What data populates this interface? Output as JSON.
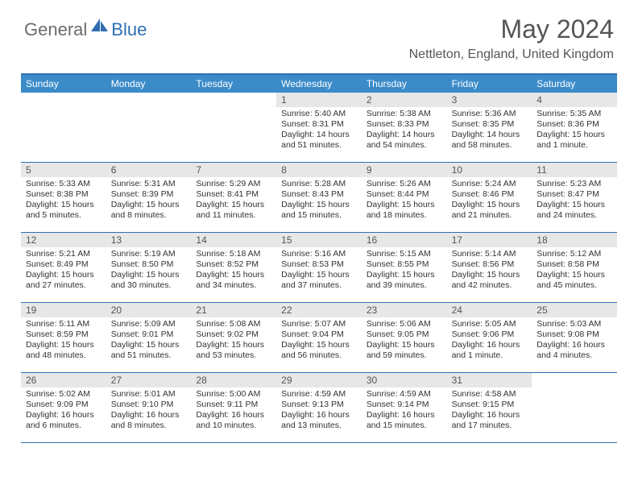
{
  "brand": {
    "text1": "General",
    "text2": "Blue"
  },
  "title": "May 2024",
  "location": "Nettleton, England, United Kingdom",
  "styling": {
    "accent_color": "#3b8bc9",
    "border_color": "#2f6fb3",
    "daynum_bg": "#e7e7e7",
    "text_color": "#555555",
    "body_text": "#333333",
    "logo_gray": "#6b6b6b",
    "logo_blue": "#2f6fb3",
    "title_fontsize": 32,
    "location_fontsize": 16,
    "dayheader_fontsize": 12,
    "daynum_fontsize": 12,
    "body_fontsize": 10.5
  },
  "day_names": [
    "Sunday",
    "Monday",
    "Tuesday",
    "Wednesday",
    "Thursday",
    "Friday",
    "Saturday"
  ],
  "weeks": [
    [
      null,
      null,
      null,
      {
        "n": "1",
        "sunrise": "5:40 AM",
        "sunset": "8:31 PM",
        "daylight": "14 hours and 51 minutes."
      },
      {
        "n": "2",
        "sunrise": "5:38 AM",
        "sunset": "8:33 PM",
        "daylight": "14 hours and 54 minutes."
      },
      {
        "n": "3",
        "sunrise": "5:36 AM",
        "sunset": "8:35 PM",
        "daylight": "14 hours and 58 minutes."
      },
      {
        "n": "4",
        "sunrise": "5:35 AM",
        "sunset": "8:36 PM",
        "daylight": "15 hours and 1 minute."
      }
    ],
    [
      {
        "n": "5",
        "sunrise": "5:33 AM",
        "sunset": "8:38 PM",
        "daylight": "15 hours and 5 minutes."
      },
      {
        "n": "6",
        "sunrise": "5:31 AM",
        "sunset": "8:39 PM",
        "daylight": "15 hours and 8 minutes."
      },
      {
        "n": "7",
        "sunrise": "5:29 AM",
        "sunset": "8:41 PM",
        "daylight": "15 hours and 11 minutes."
      },
      {
        "n": "8",
        "sunrise": "5:28 AM",
        "sunset": "8:43 PM",
        "daylight": "15 hours and 15 minutes."
      },
      {
        "n": "9",
        "sunrise": "5:26 AM",
        "sunset": "8:44 PM",
        "daylight": "15 hours and 18 minutes."
      },
      {
        "n": "10",
        "sunrise": "5:24 AM",
        "sunset": "8:46 PM",
        "daylight": "15 hours and 21 minutes."
      },
      {
        "n": "11",
        "sunrise": "5:23 AM",
        "sunset": "8:47 PM",
        "daylight": "15 hours and 24 minutes."
      }
    ],
    [
      {
        "n": "12",
        "sunrise": "5:21 AM",
        "sunset": "8:49 PM",
        "daylight": "15 hours and 27 minutes."
      },
      {
        "n": "13",
        "sunrise": "5:19 AM",
        "sunset": "8:50 PM",
        "daylight": "15 hours and 30 minutes."
      },
      {
        "n": "14",
        "sunrise": "5:18 AM",
        "sunset": "8:52 PM",
        "daylight": "15 hours and 34 minutes."
      },
      {
        "n": "15",
        "sunrise": "5:16 AM",
        "sunset": "8:53 PM",
        "daylight": "15 hours and 37 minutes."
      },
      {
        "n": "16",
        "sunrise": "5:15 AM",
        "sunset": "8:55 PM",
        "daylight": "15 hours and 39 minutes."
      },
      {
        "n": "17",
        "sunrise": "5:14 AM",
        "sunset": "8:56 PM",
        "daylight": "15 hours and 42 minutes."
      },
      {
        "n": "18",
        "sunrise": "5:12 AM",
        "sunset": "8:58 PM",
        "daylight": "15 hours and 45 minutes."
      }
    ],
    [
      {
        "n": "19",
        "sunrise": "5:11 AM",
        "sunset": "8:59 PM",
        "daylight": "15 hours and 48 minutes."
      },
      {
        "n": "20",
        "sunrise": "5:09 AM",
        "sunset": "9:01 PM",
        "daylight": "15 hours and 51 minutes."
      },
      {
        "n": "21",
        "sunrise": "5:08 AM",
        "sunset": "9:02 PM",
        "daylight": "15 hours and 53 minutes."
      },
      {
        "n": "22",
        "sunrise": "5:07 AM",
        "sunset": "9:04 PM",
        "daylight": "15 hours and 56 minutes."
      },
      {
        "n": "23",
        "sunrise": "5:06 AM",
        "sunset": "9:05 PM",
        "daylight": "15 hours and 59 minutes."
      },
      {
        "n": "24",
        "sunrise": "5:05 AM",
        "sunset": "9:06 PM",
        "daylight": "16 hours and 1 minute."
      },
      {
        "n": "25",
        "sunrise": "5:03 AM",
        "sunset": "9:08 PM",
        "daylight": "16 hours and 4 minutes."
      }
    ],
    [
      {
        "n": "26",
        "sunrise": "5:02 AM",
        "sunset": "9:09 PM",
        "daylight": "16 hours and 6 minutes."
      },
      {
        "n": "27",
        "sunrise": "5:01 AM",
        "sunset": "9:10 PM",
        "daylight": "16 hours and 8 minutes."
      },
      {
        "n": "28",
        "sunrise": "5:00 AM",
        "sunset": "9:11 PM",
        "daylight": "16 hours and 10 minutes."
      },
      {
        "n": "29",
        "sunrise": "4:59 AM",
        "sunset": "9:13 PM",
        "daylight": "16 hours and 13 minutes."
      },
      {
        "n": "30",
        "sunrise": "4:59 AM",
        "sunset": "9:14 PM",
        "daylight": "16 hours and 15 minutes."
      },
      {
        "n": "31",
        "sunrise": "4:58 AM",
        "sunset": "9:15 PM",
        "daylight": "16 hours and 17 minutes."
      },
      null
    ]
  ],
  "labels": {
    "sunrise": "Sunrise: ",
    "sunset": "Sunset: ",
    "daylight": "Daylight: "
  }
}
